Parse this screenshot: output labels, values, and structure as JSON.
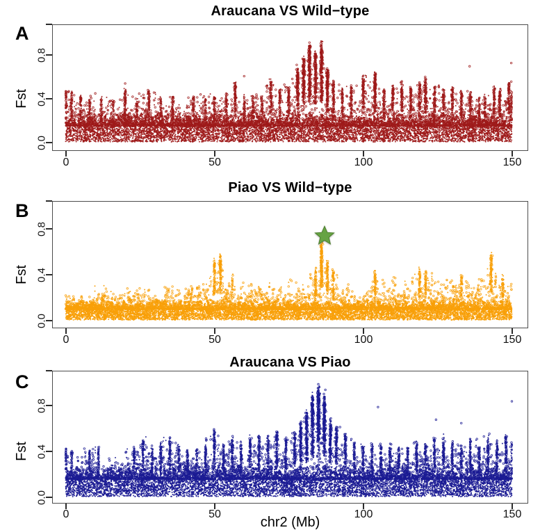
{
  "figure": {
    "background": "#ffffff",
    "xlabel": "chr2 (Mb)",
    "ylabel": "Fst",
    "x_ticks": [
      "0",
      "50",
      "100",
      "150"
    ],
    "y_ticks": [
      "0.0",
      "0.4",
      "0.8"
    ],
    "frame_color": "#4c4c4c",
    "tick_color": "#2b2b2b",
    "text_color": "#000000"
  },
  "panels": [
    {
      "letter": "A",
      "title": "Araucana VS Wild−type"
    },
    {
      "letter": "B",
      "title": "Piao VS Wild−type"
    },
    {
      "letter": "C",
      "title": "Araucana VS Piao"
    }
  ],
  "chart_data": [
    {
      "type": "scatter",
      "name": "Araucana VS Wild-type",
      "xlabel": "chr2 (Mb)",
      "ylabel": "Fst",
      "x_range": [
        0,
        150
      ],
      "y_tick_values": [
        0.0,
        0.4,
        0.8
      ],
      "color": "#9E1A1A",
      "n_points": 13000,
      "seed": 11,
      "bulk_top": 0.21,
      "envelope": [
        [
          0,
          0.46
        ],
        [
          2,
          0.44
        ],
        [
          5,
          0.42
        ],
        [
          8,
          0.4
        ],
        [
          12,
          0.4
        ],
        [
          16,
          0.38
        ],
        [
          20,
          0.47
        ],
        [
          24,
          0.38
        ],
        [
          28,
          0.45
        ],
        [
          32,
          0.4
        ],
        [
          36,
          0.42
        ],
        [
          39,
          0.34
        ],
        [
          43,
          0.41
        ],
        [
          47,
          0.38
        ],
        [
          50,
          0.42
        ],
        [
          54,
          0.45
        ],
        [
          57,
          0.53
        ],
        [
          60,
          0.42
        ],
        [
          63,
          0.42
        ],
        [
          66,
          0.4
        ],
        [
          69,
          0.55
        ],
        [
          72,
          0.48
        ],
        [
          75,
          0.5
        ],
        [
          78,
          0.65
        ],
        [
          80,
          0.75
        ],
        [
          82,
          0.86
        ],
        [
          84,
          0.8
        ],
        [
          86,
          0.88
        ],
        [
          88,
          0.66
        ],
        [
          90,
          0.55
        ],
        [
          93,
          0.48
        ],
        [
          96,
          0.5
        ],
        [
          100,
          0.58
        ],
        [
          104,
          0.62
        ],
        [
          107,
          0.47
        ],
        [
          110,
          0.5
        ],
        [
          113,
          0.53
        ],
        [
          116,
          0.5
        ],
        [
          119,
          0.52
        ],
        [
          121,
          0.57
        ],
        [
          124,
          0.5
        ],
        [
          127,
          0.48
        ],
        [
          130,
          0.5
        ],
        [
          133,
          0.46
        ],
        [
          136,
          0.44
        ],
        [
          139,
          0.4
        ],
        [
          141,
          0.42
        ],
        [
          144,
          0.5
        ],
        [
          146,
          0.48
        ],
        [
          149,
          0.52
        ],
        [
          150,
          0.45
        ]
      ],
      "outliers": [
        [
          135.8,
          0.69
        ],
        [
          149.8,
          0.72
        ],
        [
          149.8,
          0.55
        ],
        [
          60,
          0.6
        ]
      ]
    },
    {
      "type": "scatter",
      "name": "Piao VS Wild-type",
      "xlabel": "chr2 (Mb)",
      "ylabel": "Fst",
      "x_range": [
        0,
        150
      ],
      "y_tick_values": [
        0.0,
        0.4,
        0.8
      ],
      "color": "#F9A009",
      "n_points": 13000,
      "seed": 22,
      "bulk_top": 0.135,
      "envelope": [
        [
          0,
          0.24
        ],
        [
          3,
          0.22
        ],
        [
          6,
          0.22
        ],
        [
          9,
          0.26
        ],
        [
          12,
          0.33
        ],
        [
          15,
          0.24
        ],
        [
          18,
          0.26
        ],
        [
          21,
          0.28
        ],
        [
          24,
          0.3
        ],
        [
          27,
          0.26
        ],
        [
          30,
          0.28
        ],
        [
          33,
          0.26
        ],
        [
          36,
          0.34
        ],
        [
          39,
          0.28
        ],
        [
          42,
          0.3
        ],
        [
          45,
          0.28
        ],
        [
          48,
          0.3
        ],
        [
          50,
          0.52
        ],
        [
          52,
          0.55
        ],
        [
          54,
          0.34
        ],
        [
          56,
          0.38
        ],
        [
          58,
          0.28
        ],
        [
          60,
          0.3
        ],
        [
          63,
          0.32
        ],
        [
          66,
          0.34
        ],
        [
          69,
          0.28
        ],
        [
          72,
          0.3
        ],
        [
          75,
          0.36
        ],
        [
          78,
          0.3
        ],
        [
          81,
          0.32
        ],
        [
          84,
          0.45
        ],
        [
          86,
          0.66
        ],
        [
          88,
          0.5
        ],
        [
          90,
          0.42
        ],
        [
          92,
          0.34
        ],
        [
          95,
          0.3
        ],
        [
          98,
          0.28
        ],
        [
          101,
          0.3
        ],
        [
          104,
          0.42
        ],
        [
          107,
          0.32
        ],
        [
          110,
          0.34
        ],
        [
          113,
          0.3
        ],
        [
          116,
          0.34
        ],
        [
          119,
          0.45
        ],
        [
          121,
          0.42
        ],
        [
          124,
          0.34
        ],
        [
          127,
          0.36
        ],
        [
          130,
          0.32
        ],
        [
          133,
          0.38
        ],
        [
          136,
          0.34
        ],
        [
          139,
          0.34
        ],
        [
          141,
          0.36
        ],
        [
          143,
          0.56
        ],
        [
          145,
          0.36
        ],
        [
          147,
          0.38
        ],
        [
          150,
          0.3
        ]
      ],
      "outliers": [
        [
          86.5,
          0.66
        ],
        [
          143.5,
          0.56
        ]
      ],
      "annotation": {
        "type": "star",
        "x": 87,
        "y": 0.74,
        "fill": "#66A344",
        "edge": "#4E7F2E"
      }
    },
    {
      "type": "scatter",
      "name": "Araucana VS Piao",
      "xlabel": "chr2 (Mb)",
      "ylabel": "Fst",
      "x_range": [
        0,
        150
      ],
      "y_tick_values": [
        0.0,
        0.4,
        0.8
      ],
      "color": "#1B1B94",
      "n_points": 13000,
      "seed": 33,
      "bulk_top": 0.22,
      "envelope": [
        [
          0,
          0.45
        ],
        [
          2,
          0.4
        ],
        [
          5,
          0.36
        ],
        [
          8,
          0.4
        ],
        [
          11,
          0.42
        ],
        [
          14,
          0.36
        ],
        [
          17,
          0.36
        ],
        [
          20,
          0.36
        ],
        [
          23,
          0.42
        ],
        [
          26,
          0.5
        ],
        [
          29,
          0.42
        ],
        [
          32,
          0.45
        ],
        [
          35,
          0.5
        ],
        [
          38,
          0.44
        ],
        [
          41,
          0.4
        ],
        [
          44,
          0.4
        ],
        [
          47,
          0.44
        ],
        [
          50,
          0.57
        ],
        [
          53,
          0.46
        ],
        [
          56,
          0.52
        ],
        [
          59,
          0.46
        ],
        [
          62,
          0.5
        ],
        [
          65,
          0.52
        ],
        [
          68,
          0.52
        ],
        [
          71,
          0.55
        ],
        [
          74,
          0.5
        ],
        [
          77,
          0.54
        ],
        [
          79,
          0.62
        ],
        [
          81,
          0.72
        ],
        [
          83,
          0.86
        ],
        [
          85,
          0.93
        ],
        [
          87,
          0.85
        ],
        [
          89,
          0.66
        ],
        [
          91,
          0.6
        ],
        [
          94,
          0.54
        ],
        [
          97,
          0.46
        ],
        [
          100,
          0.43
        ],
        [
          103,
          0.45
        ],
        [
          106,
          0.45
        ],
        [
          109,
          0.44
        ],
        [
          112,
          0.42
        ],
        [
          115,
          0.41
        ],
        [
          118,
          0.47
        ],
        [
          121,
          0.45
        ],
        [
          124,
          0.5
        ],
        [
          127,
          0.5
        ],
        [
          130,
          0.47
        ],
        [
          133,
          0.44
        ],
        [
          136,
          0.49
        ],
        [
          139,
          0.45
        ],
        [
          142,
          0.51
        ],
        [
          145,
          0.48
        ],
        [
          148,
          0.53
        ],
        [
          150,
          0.46
        ]
      ],
      "outliers": [
        [
          105,
          0.78
        ],
        [
          124.5,
          0.67
        ],
        [
          133,
          0.64
        ],
        [
          150,
          0.83
        ],
        [
          87.3,
          0.93
        ]
      ]
    }
  ]
}
